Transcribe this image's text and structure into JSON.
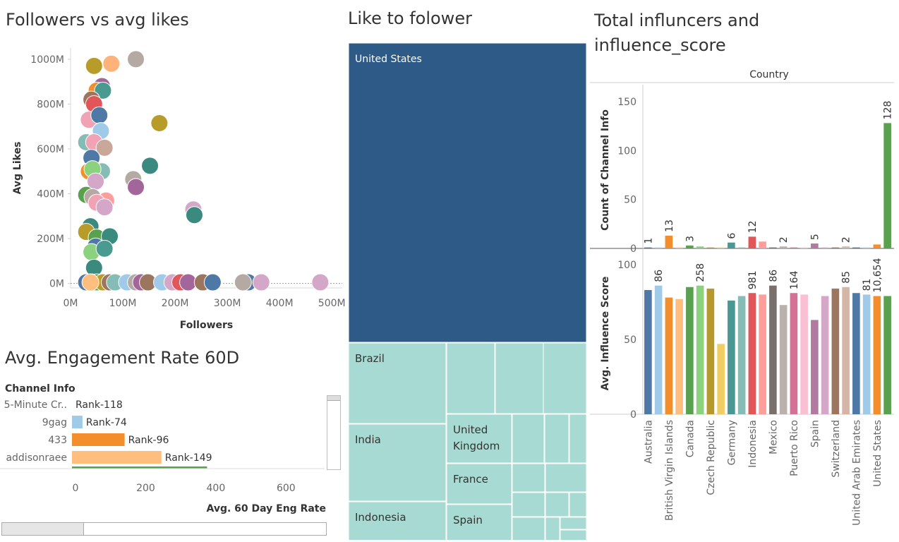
{
  "titles": {
    "scatter": "Followers vs avg likes",
    "treemap": "Like to folower",
    "bars_line1": "Total influncers and",
    "bars_line2": "influence_score",
    "engagement": "Avg. Engagement Rate 60D"
  },
  "chart_data": [
    {
      "type": "scatter",
      "title": "Followers vs avg likes",
      "xlabel": "Followers",
      "ylabel": "Avg Likes",
      "xlim": [
        0,
        520
      ],
      "ylim": [
        -20,
        1050
      ],
      "x_ticks": [
        "0M",
        "100M",
        "200M",
        "300M",
        "400M",
        "500M"
      ],
      "y_ticks": [
        "0M",
        "200M",
        "400M",
        "600M",
        "800M",
        "1000M"
      ],
      "points": [
        {
          "x": 45,
          "y": 970,
          "color": "#b89c2a"
        },
        {
          "x": 78,
          "y": 980,
          "color": "#ffb37a"
        },
        {
          "x": 125,
          "y": 1000,
          "color": "#b5a9a4"
        },
        {
          "x": 60,
          "y": 880,
          "color": "#a3669a"
        },
        {
          "x": 50,
          "y": 860,
          "color": "#f28e2b"
        },
        {
          "x": 62,
          "y": 860,
          "color": "#4a9a92"
        },
        {
          "x": 40,
          "y": 820,
          "color": "#9c755f"
        },
        {
          "x": 45,
          "y": 800,
          "color": "#e15759"
        },
        {
          "x": 35,
          "y": 730,
          "color": "#f1a3b5"
        },
        {
          "x": 55,
          "y": 750,
          "color": "#4e79a7"
        },
        {
          "x": 170,
          "y": 715,
          "color": "#b89c2a"
        },
        {
          "x": 58,
          "y": 680,
          "color": "#a0cbe8"
        },
        {
          "x": 30,
          "y": 630,
          "color": "#86bcb6"
        },
        {
          "x": 45,
          "y": 630,
          "color": "#f1a3b5"
        },
        {
          "x": 65,
          "y": 605,
          "color": "#c9a89a"
        },
        {
          "x": 40,
          "y": 560,
          "color": "#4e79a7"
        },
        {
          "x": 152,
          "y": 525,
          "color": "#3a8a80"
        },
        {
          "x": 60,
          "y": 500,
          "color": "#86bcb6"
        },
        {
          "x": 35,
          "y": 500,
          "color": "#f28e2b"
        },
        {
          "x": 42,
          "y": 510,
          "color": "#8cd17d"
        },
        {
          "x": 120,
          "y": 465,
          "color": "#b5a9a4"
        },
        {
          "x": 48,
          "y": 455,
          "color": "#d4a6c8"
        },
        {
          "x": 125,
          "y": 430,
          "color": "#a3669a"
        },
        {
          "x": 30,
          "y": 395,
          "color": "#59a14f"
        },
        {
          "x": 42,
          "y": 385,
          "color": "#b5a9a4"
        },
        {
          "x": 68,
          "y": 370,
          "color": "#ff9d9a"
        },
        {
          "x": 50,
          "y": 360,
          "color": "#f1a3b5"
        },
        {
          "x": 65,
          "y": 340,
          "color": "#d4a6c8"
        },
        {
          "x": 235,
          "y": 330,
          "color": "#d4a6c8"
        },
        {
          "x": 237,
          "y": 305,
          "color": "#3a8a80"
        },
        {
          "x": 38,
          "y": 255,
          "color": "#3a8a80"
        },
        {
          "x": 30,
          "y": 230,
          "color": "#b89c2a"
        },
        {
          "x": 50,
          "y": 205,
          "color": "#59a14f"
        },
        {
          "x": 75,
          "y": 210,
          "color": "#3a8a80"
        },
        {
          "x": 48,
          "y": 165,
          "color": "#4e79a7"
        },
        {
          "x": 40,
          "y": 140,
          "color": "#8cd17d"
        },
        {
          "x": 65,
          "y": 155,
          "color": "#4a9a92"
        },
        {
          "x": 45,
          "y": 70,
          "color": "#3a8a80"
        },
        {
          "x": 30,
          "y": 5,
          "color": "#4e79a7"
        },
        {
          "x": 40,
          "y": 5,
          "color": "#f28e2b"
        },
        {
          "x": 50,
          "y": 5,
          "color": "#59a14f"
        },
        {
          "x": 62,
          "y": 5,
          "color": "#b89c2a"
        },
        {
          "x": 75,
          "y": 5,
          "color": "#9c755f"
        },
        {
          "x": 85,
          "y": 5,
          "color": "#86bcb6"
        },
        {
          "x": 108,
          "y": 5,
          "color": "#a0cbe8"
        },
        {
          "x": 125,
          "y": 5,
          "color": "#b5a9a4"
        },
        {
          "x": 135,
          "y": 5,
          "color": "#a3669a"
        },
        {
          "x": 148,
          "y": 5,
          "color": "#9c755f"
        },
        {
          "x": 175,
          "y": 5,
          "color": "#a0cbe8"
        },
        {
          "x": 195,
          "y": 5,
          "color": "#d4a6c8"
        },
        {
          "x": 210,
          "y": 5,
          "color": "#e15759"
        },
        {
          "x": 225,
          "y": 5,
          "color": "#a3669a"
        },
        {
          "x": 253,
          "y": 5,
          "color": "#9c755f"
        },
        {
          "x": 272,
          "y": 5,
          "color": "#4e79a7"
        },
        {
          "x": 340,
          "y": 5,
          "color": "#4e79a7"
        },
        {
          "x": 330,
          "y": 5,
          "color": "#b5a9a4"
        },
        {
          "x": 365,
          "y": 5,
          "color": "#d4a6c8"
        },
        {
          "x": 478,
          "y": 5,
          "color": "#d4a6c8"
        },
        {
          "x": 38,
          "y": 5,
          "color": "#ffbe7d"
        }
      ]
    },
    {
      "type": "treemap",
      "title": "Like to folower",
      "labeled_cells": [
        "United States",
        "Brazil",
        "India",
        "Indonesia",
        "United Kingdom",
        "France",
        "Spain"
      ],
      "colors": {
        "dominant": "#2e5a87",
        "light": "#a7dad2"
      }
    },
    {
      "type": "bar",
      "title": "Total influncers and influence_score",
      "header": "Country",
      "categories": [
        "Australia",
        "",
        "British Virgin Islands",
        "",
        "Canada",
        "",
        "Czech Republic",
        "",
        "Germany",
        "",
        "Indonesia",
        "",
        "Mexico",
        "",
        "Puerto Rico",
        "",
        "Spain",
        "",
        "Switzerland",
        "",
        "United Arab Emirates",
        "",
        "United States",
        ""
      ],
      "tick_labels": [
        "Australia",
        "British Virgin Islands",
        "Canada",
        "Czech Republic",
        "Germany",
        "Indonesia",
        "Mexico",
        "Puerto Rico",
        "Spain",
        "Switzerland",
        "United Arab Emirates",
        "United States"
      ],
      "colors": [
        "#4e79a7",
        "#a0cbe8",
        "#f28e2b",
        "#ffbe7d",
        "#59a14f",
        "#8cd17d",
        "#b6992d",
        "#f1ce63",
        "#499894",
        "#86bcb6",
        "#e15759",
        "#ff9d9a",
        "#79706e",
        "#bab0ac",
        "#d37295",
        "#fabfd2",
        "#b07aa1",
        "#d4a6c8",
        "#9d7660",
        "#d7b5a6",
        "#4e79a7",
        "#a0cbe8",
        "#f28e2b",
        "#59a14f"
      ],
      "series": [
        {
          "name": "Count of Channel Info",
          "ylabel": "Count of Channel Info",
          "ylim": [
            0,
            160
          ],
          "y_ticks": [
            0,
            50,
            100,
            150
          ],
          "values": [
            1,
            1,
            13,
            1,
            3,
            2,
            1,
            1,
            6,
            1,
            12,
            7,
            1,
            2,
            1,
            1,
            5,
            1,
            1,
            2,
            1,
            1,
            4,
            128
          ],
          "data_labels": [
            "1",
            "",
            "13",
            "",
            "3",
            "",
            "",
            "",
            "6",
            "",
            "12",
            "",
            "",
            "2",
            "",
            "",
            "5",
            "",
            "",
            "2",
            "",
            "",
            "",
            "128"
          ]
        },
        {
          "name": "Avg. Influence Score",
          "ylabel": "Avg. Influence Score",
          "ylim": [
            0,
            108
          ],
          "y_ticks": [
            0,
            50,
            100
          ],
          "values": [
            83,
            86,
            78,
            77,
            85,
            86,
            84,
            47,
            76,
            79,
            81,
            80,
            86,
            73,
            81,
            80,
            63,
            79,
            84,
            85,
            81,
            80,
            79,
            79
          ],
          "data_labels": [
            "",
            "86",
            "",
            "",
            "",
            "258",
            "",
            "",
            "",
            "",
            "981",
            "",
            "86",
            "",
            "164",
            "",
            "",
            "",
            "",
            "85",
            "",
            "81",
            "10,654",
            ""
          ]
        }
      ]
    },
    {
      "type": "bar",
      "orientation": "horizontal",
      "title": "Avg. Engagement Rate 60D",
      "row_header": "Channel Info",
      "xlabel": "Avg. 60 Day Eng Rate",
      "x_ticks": [
        "0",
        "200",
        "400",
        "600"
      ],
      "xlim": [
        0,
        720
      ],
      "categories": [
        "5-Minute Cr..",
        "9gag",
        "433",
        "addisonraee"
      ],
      "values": [
        0,
        30,
        150,
        255
      ],
      "labels": [
        "Rank-118",
        "Rank-74",
        "Rank-96",
        "Rank-149"
      ],
      "colors": [
        "#4e79a7",
        "#a0cbe8",
        "#f28e2b",
        "#ffbe7d"
      ],
      "partial_row": {
        "value": 385,
        "color": "#59a14f"
      }
    }
  ]
}
